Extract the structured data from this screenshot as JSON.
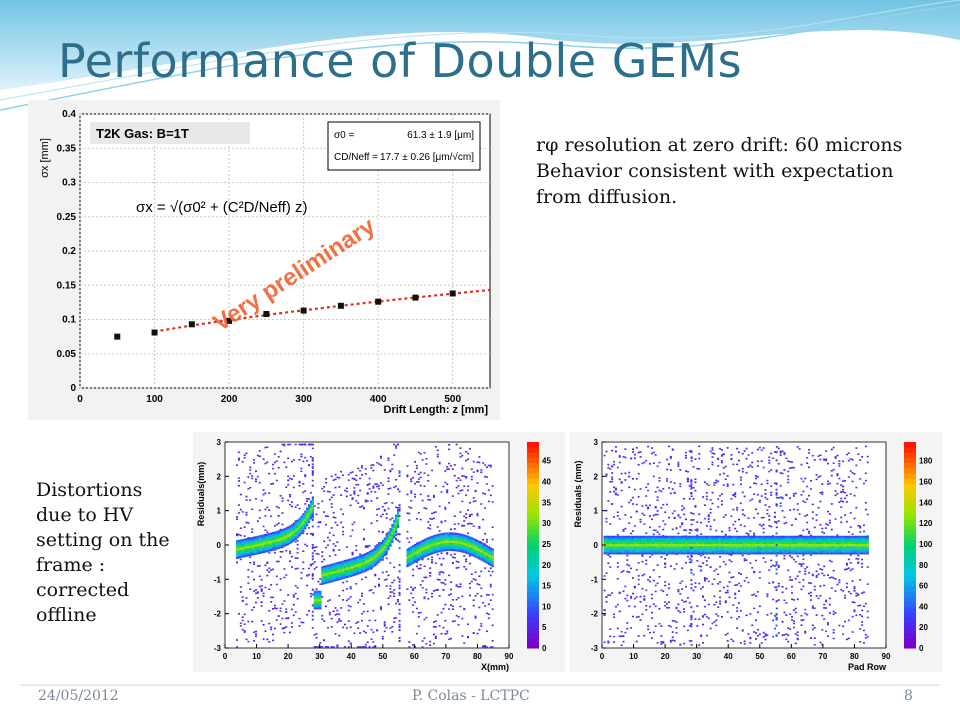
{
  "slide": {
    "title": "Performance of Double GEMs",
    "resolution_note": [
      "rφ resolution at zero drift: 60 microns",
      "Behavior consistent with expectation",
      "from diffusion."
    ],
    "distortion_note": [
      "Distortions",
      "due to HV",
      "setting on the",
      "frame :",
      "corrected",
      "offline"
    ],
    "footer": {
      "date": "24/05/2012",
      "author": "P. Colas - LCTPC",
      "page": "8"
    }
  },
  "colors": {
    "title": "#2d6e8a",
    "wave_top": "#6fc6e6",
    "fit_line": "#e03020",
    "watermark": "#f06030"
  },
  "chart_data": [
    {
      "type": "scatter",
      "title": "T2K Gas:  B=1T",
      "xlabel": "Drift Length: z [mm]",
      "ylabel": "σx [mm]",
      "xlim": [
        0,
        550
      ],
      "ylim": [
        0,
        0.4
      ],
      "xticks": [
        "0",
        "100",
        "200",
        "300",
        "400",
        "500"
      ],
      "yticks": [
        "0",
        "0.05",
        "0.1",
        "0.15",
        "0.2",
        "0.25",
        "0.3",
        "0.35",
        "0.4"
      ],
      "grid": true,
      "formula": "σx = √(σ0² + (C²D/Neff) z)",
      "fit_box": [
        {
          "label": "σ0 =",
          "value": "61.3 ± 1.9 [μm]"
        },
        {
          "label": "CD/Neff =",
          "value": "17.7 ± 0.26 [μm/√cm]"
        }
      ],
      "watermark": "Very preliminary",
      "x": [
        50,
        100,
        150,
        200,
        250,
        300,
        350,
        400,
        450,
        500
      ],
      "y": [
        0.075,
        0.081,
        0.093,
        0.098,
        0.108,
        0.113,
        0.12,
        0.126,
        0.132,
        0.138
      ],
      "fit": {
        "sigma0_mm": 0.0613,
        "slope": 3.04e-05
      }
    },
    {
      "type": "heatmap",
      "xlabel": "X(mm)",
      "ylabel": "Residuals(mm)",
      "xlim": [
        0,
        90
      ],
      "ylim": [
        -3,
        3
      ],
      "xticks": [
        "0",
        "10",
        "20",
        "30",
        "40",
        "50",
        "60",
        "70",
        "80",
        "90"
      ],
      "yticks": [
        "-3",
        "-2",
        "-1",
        "0",
        "1",
        "2",
        "3"
      ],
      "colorbar": [
        "0",
        "5",
        "10",
        "15",
        "20",
        "25",
        "30",
        "35",
        "40",
        "45"
      ]
    },
    {
      "type": "heatmap",
      "xlabel": "Pad Row",
      "ylabel": "Residuals (mm)",
      "xlim": [
        0,
        90
      ],
      "ylim": [
        -3,
        3
      ],
      "xticks": [
        "0",
        "10",
        "20",
        "30",
        "40",
        "50",
        "60",
        "70",
        "80",
        "90"
      ],
      "yticks": [
        "-3",
        "-2",
        "-1",
        "0",
        "1",
        "2",
        "3"
      ],
      "colorbar": [
        "0",
        "20",
        "40",
        "60",
        "80",
        "100",
        "120",
        "140",
        "160",
        "180"
      ]
    }
  ]
}
